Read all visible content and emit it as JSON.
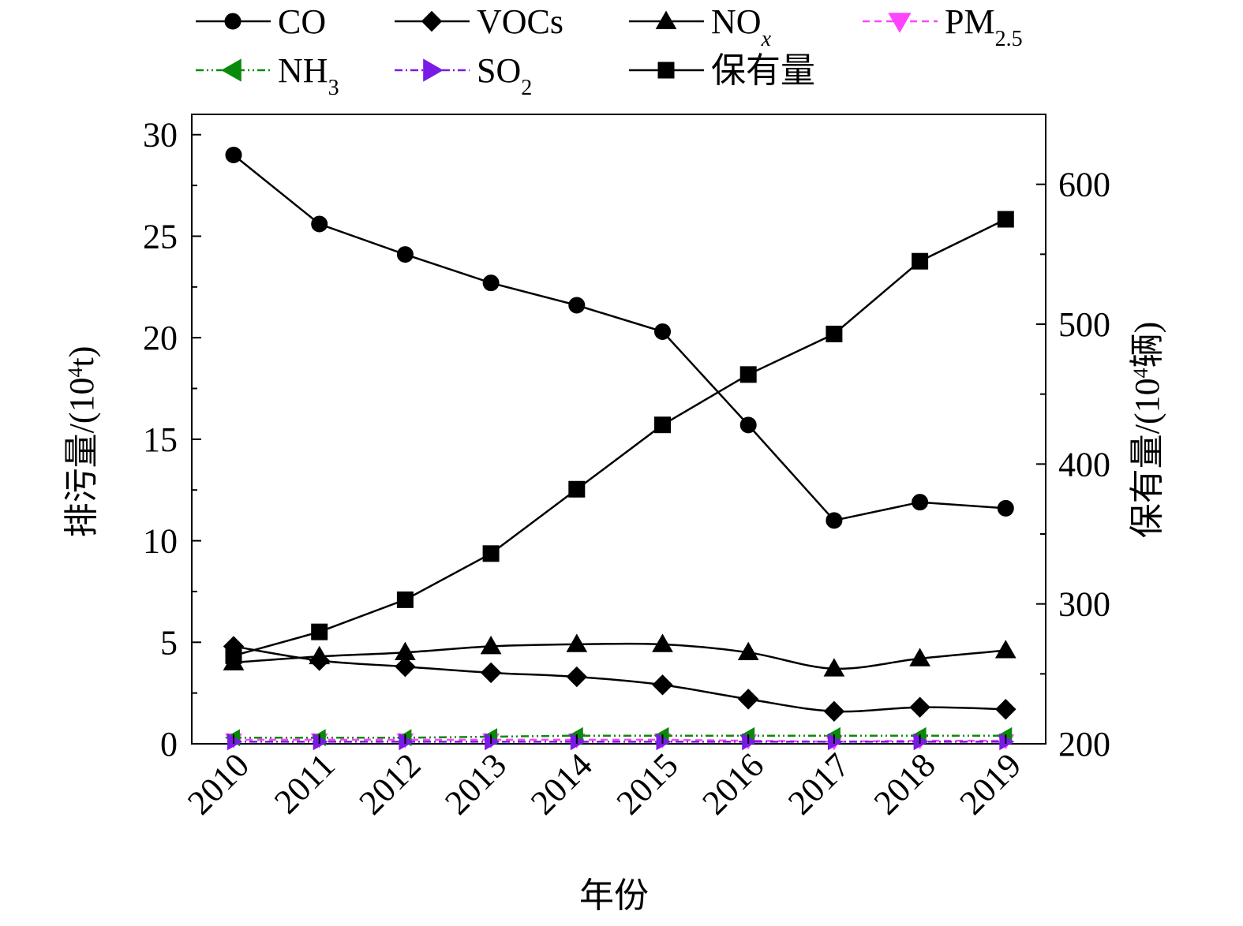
{
  "chart_data": {
    "type": "line",
    "categories": [
      "2010",
      "2011",
      "2012",
      "2013",
      "2014",
      "2015",
      "2016",
      "2017",
      "2018",
      "2019"
    ],
    "xlabel": "年份",
    "ylabel": {
      "main": "排污量/(10",
      "sup": "4",
      "tail": "t)"
    },
    "y2label": {
      "main": "保有量/(10",
      "sup": "4",
      "tail": "辆)"
    },
    "ylim": [
      0,
      31
    ],
    "y2lim": [
      200,
      650
    ],
    "yticks": [
      0,
      5,
      10,
      15,
      20,
      25,
      30
    ],
    "y2ticks": [
      200,
      300,
      400,
      500,
      600
    ],
    "legend_position": "top",
    "series": [
      {
        "name": "CO",
        "axis": "left",
        "marker": "circle",
        "color": "#000000",
        "dash": "",
        "smooth": false,
        "values": [
          29.0,
          25.6,
          24.1,
          22.7,
          21.6,
          20.3,
          15.7,
          11.0,
          11.9,
          11.6
        ]
      },
      {
        "name": "VOCs",
        "axis": "left",
        "marker": "diamond",
        "color": "#000000",
        "dash": "",
        "smooth": true,
        "values": [
          4.8,
          4.1,
          3.8,
          3.5,
          3.3,
          2.9,
          2.2,
          1.6,
          1.8,
          1.7
        ]
      },
      {
        "name": "NO",
        "sub": "x",
        "sub_italic": true,
        "axis": "left",
        "marker": "triangle-up",
        "color": "#000000",
        "dash": "",
        "smooth": true,
        "values": [
          4.0,
          4.3,
          4.5,
          4.8,
          4.9,
          4.9,
          4.5,
          3.7,
          4.2,
          4.6
        ]
      },
      {
        "name": "PM",
        "sub": "2.5",
        "axis": "left",
        "marker": "triangle-down",
        "color": "#ff44ff",
        "dash": "9,6",
        "smooth": false,
        "values": [
          0.2,
          0.2,
          0.2,
          0.2,
          0.2,
          0.2,
          0.15,
          0.1,
          0.15,
          0.15
        ]
      },
      {
        "name": "NH",
        "sub": "3",
        "axis": "left",
        "marker": "triangle-left",
        "color": "#0a8a0a",
        "dash": "10,4,2,4,2,4",
        "smooth": false,
        "values": [
          0.3,
          0.3,
          0.3,
          0.35,
          0.4,
          0.4,
          0.4,
          0.4,
          0.4,
          0.4
        ]
      },
      {
        "name": "SO",
        "sub": "2",
        "axis": "left",
        "marker": "triangle-right",
        "color": "#7a1ae6",
        "dash": "10,4,2,4",
        "smooth": false,
        "values": [
          0.1,
          0.1,
          0.1,
          0.1,
          0.1,
          0.1,
          0.1,
          0.1,
          0.1,
          0.1
        ]
      },
      {
        "name": "保有量",
        "axis": "right",
        "marker": "square",
        "color": "#000000",
        "dash": "",
        "smooth": false,
        "values": [
          263,
          280,
          303,
          336,
          382,
          428,
          464,
          493,
          545,
          575
        ]
      }
    ]
  }
}
